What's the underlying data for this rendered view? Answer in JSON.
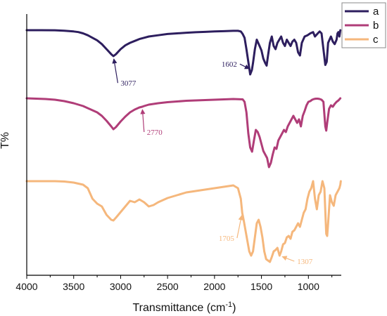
{
  "chart_data": {
    "type": "line",
    "xlabel": "Transmittance (cm",
    "xlabel_sup": "-1",
    "xlabel_end": ")",
    "ylabel": "T%",
    "xlim": [
      4000,
      650
    ],
    "x_reversed": true,
    "xticks": [
      "4000",
      "3500",
      "3000",
      "2500",
      "2000",
      "1500",
      "1000"
    ],
    "grid": false,
    "legend_position": "top-right",
    "series": [
      {
        "name": "a",
        "color": "#2d1e5e",
        "x": [
          4000,
          3850,
          3700,
          3600,
          3500,
          3450,
          3400,
          3350,
          3300,
          3250,
          3200,
          3150,
          3100,
          3077,
          3050,
          3000,
          2950,
          2900,
          2850,
          2800,
          2750,
          2700,
          2600,
          2500,
          2400,
          2300,
          2200,
          2100,
          2000,
          1900,
          1800,
          1750,
          1720,
          1700,
          1680,
          1660,
          1640,
          1620,
          1602,
          1590,
          1570,
          1550,
          1520,
          1500,
          1480,
          1460,
          1445,
          1430,
          1410,
          1390,
          1370,
          1350,
          1330,
          1310,
          1290,
          1270,
          1250,
          1230,
          1210,
          1190,
          1170,
          1150,
          1130,
          1110,
          1090,
          1070,
          1040,
          1010,
          980,
          950,
          930,
          900,
          880,
          860,
          840,
          820,
          805,
          790,
          775,
          760,
          740,
          720,
          700,
          690,
          680,
          670,
          660
        ],
        "y": [
          0.0,
          0.0,
          0.2,
          0.8,
          2.0,
          3.0,
          5.0,
          8.0,
          12.0,
          16.0,
          22.0,
          30.0,
          38.0,
          41.0,
          38.0,
          30.0,
          24.0,
          20.0,
          17.0,
          14.0,
          12.0,
          10.0,
          8.0,
          6.0,
          5.0,
          4.0,
          3.2,
          2.6,
          2.0,
          1.5,
          1.0,
          1.0,
          2.0,
          6.0,
          12.0,
          30.0,
          50.0,
          70.0,
          63.0,
          52.0,
          30.0,
          15.0,
          25.0,
          32.0,
          45.0,
          52.0,
          56.0,
          40.0,
          20.0,
          10.0,
          25.0,
          30.0,
          20.0,
          15.0,
          10.0,
          20.0,
          25.0,
          15.0,
          20.0,
          25.0,
          18.0,
          15.0,
          20.0,
          35.0,
          40.0,
          20.0,
          10.0,
          8.0,
          5.0,
          3.0,
          10.0,
          5.0,
          2.0,
          5.0,
          30.0,
          55.0,
          50.0,
          20.0,
          15.0,
          10.0,
          18.0,
          22.0,
          15.0,
          5.0,
          3.0,
          10.0,
          0.0
        ]
      },
      {
        "name": "b",
        "color": "#b03d78",
        "x": [
          4000,
          3900,
          3800,
          3700,
          3600,
          3500,
          3400,
          3300,
          3250,
          3200,
          3150,
          3100,
          3077,
          3050,
          3000,
          2950,
          2900,
          2850,
          2800,
          2770,
          2750,
          2700,
          2600,
          2500,
          2400,
          2300,
          2200,
          2100,
          2000,
          1900,
          1800,
          1700,
          1680,
          1660,
          1640,
          1620,
          1600,
          1580,
          1560,
          1540,
          1520,
          1500,
          1480,
          1460,
          1440,
          1420,
          1400,
          1380,
          1360,
          1340,
          1320,
          1300,
          1280,
          1260,
          1240,
          1220,
          1200,
          1180,
          1160,
          1140,
          1120,
          1100,
          1080,
          1060,
          1040,
          1020,
          1000,
          980,
          960,
          940,
          920,
          900,
          880,
          860,
          840,
          820,
          810,
          800,
          780,
          760,
          740,
          720,
          700,
          680,
          660
        ],
        "y": [
          0.0,
          0.5,
          1.0,
          2.0,
          4.0,
          7.0,
          11.0,
          17.0,
          20.0,
          25.0,
          32.0,
          40.0,
          44.0,
          41.0,
          33.0,
          26.0,
          20.0,
          16.0,
          13.0,
          12.0,
          11.0,
          9.0,
          7.0,
          5.5,
          4.5,
          3.5,
          3.0,
          2.5,
          2.0,
          1.5,
          1.0,
          1.5,
          5.0,
          20.0,
          50.0,
          70.0,
          76.0,
          60.0,
          45.0,
          48.0,
          55.0,
          65.0,
          75.0,
          80.0,
          85.0,
          98.0,
          92.0,
          80.0,
          70.0,
          72.0,
          60.0,
          55.0,
          50.0,
          45.0,
          48.0,
          40.0,
          35.0,
          30.0,
          25.0,
          30.0,
          35.0,
          30.0,
          40.0,
          25.0,
          18.0,
          10.0,
          5.0,
          4.0,
          2.0,
          1.0,
          0.5,
          0.5,
          1.0,
          2.0,
          5.0,
          40.0,
          46.0,
          35.0,
          15.0,
          10.0,
          12.0,
          8.0,
          5.0,
          3.0,
          0.0
        ]
      },
      {
        "name": "c",
        "color": "#f5b77c",
        "x": [
          4000,
          3900,
          3800,
          3700,
          3600,
          3500,
          3400,
          3350,
          3300,
          3250,
          3200,
          3150,
          3100,
          3077,
          3050,
          3000,
          2950,
          2900,
          2850,
          2800,
          2750,
          2700,
          2650,
          2600,
          2500,
          2400,
          2300,
          2200,
          2100,
          2000,
          1900,
          1800,
          1750,
          1720,
          1705,
          1690,
          1670,
          1650,
          1630,
          1610,
          1590,
          1570,
          1550,
          1530,
          1510,
          1490,
          1470,
          1450,
          1430,
          1410,
          1390,
          1370,
          1350,
          1330,
          1307,
          1290,
          1270,
          1250,
          1230,
          1210,
          1190,
          1170,
          1150,
          1130,
          1110,
          1090,
          1070,
          1050,
          1030,
          1010,
          990,
          970,
          950,
          930,
          910,
          890,
          870,
          850,
          830,
          810,
          800,
          790,
          770,
          750,
          730,
          710,
          690,
          670,
          660,
          655
        ],
        "y": [
          0.0,
          0.0,
          0.0,
          0.0,
          0.5,
          2.0,
          5.0,
          10.0,
          25.0,
          32.0,
          36.0,
          48.0,
          55.0,
          56.0,
          52.0,
          44.0,
          36.0,
          28.0,
          30.0,
          26.0,
          30.0,
          36.0,
          34.0,
          30.0,
          24.0,
          20.0,
          16.0,
          14.0,
          12.0,
          10.0,
          8.0,
          6.0,
          10.0,
          25.0,
          45.0,
          55.0,
          70.0,
          85.0,
          100.0,
          106.0,
          100.0,
          80.0,
          60.0,
          55.0,
          65.0,
          80.0,
          100.0,
          111.0,
          113.0,
          115.0,
          108.0,
          100.0,
          98.0,
          95.0,
          106.0,
          100.0,
          90.0,
          88.0,
          80.0,
          78.0,
          82.0,
          72.0,
          70.0,
          65.0,
          60.0,
          65.0,
          55.0,
          45.0,
          40.0,
          25.0,
          15.0,
          10.0,
          0.0,
          25.0,
          40.0,
          20.0,
          15.0,
          0.0,
          10.0,
          75.0,
          78.0,
          60.0,
          20.0,
          30.0,
          35.0,
          20.0,
          15.0,
          10.0,
          5.0,
          0.0
        ]
      }
    ],
    "annotations": [
      {
        "text": "3077",
        "series": "a",
        "x": 3077,
        "label_x": 3000,
        "label_y": 88,
        "color": "#2d1e5e"
      },
      {
        "text": "1602",
        "series": "a",
        "x": 1602,
        "label_x": 1760,
        "label_y": 58,
        "color": "#2d1e5e"
      },
      {
        "text": "2770",
        "series": "b",
        "x": 2770,
        "label_x": 2720,
        "label_y": 52,
        "color": "#b03d78"
      },
      {
        "text": "1705",
        "series": "c",
        "x": 1705,
        "label_x": 1790,
        "label_y": 85,
        "color": "#f5b77c"
      },
      {
        "text": "1307",
        "series": "c",
        "x": 1307,
        "label_x": 1120,
        "label_y": 118,
        "color": "#f5b77c"
      }
    ]
  }
}
